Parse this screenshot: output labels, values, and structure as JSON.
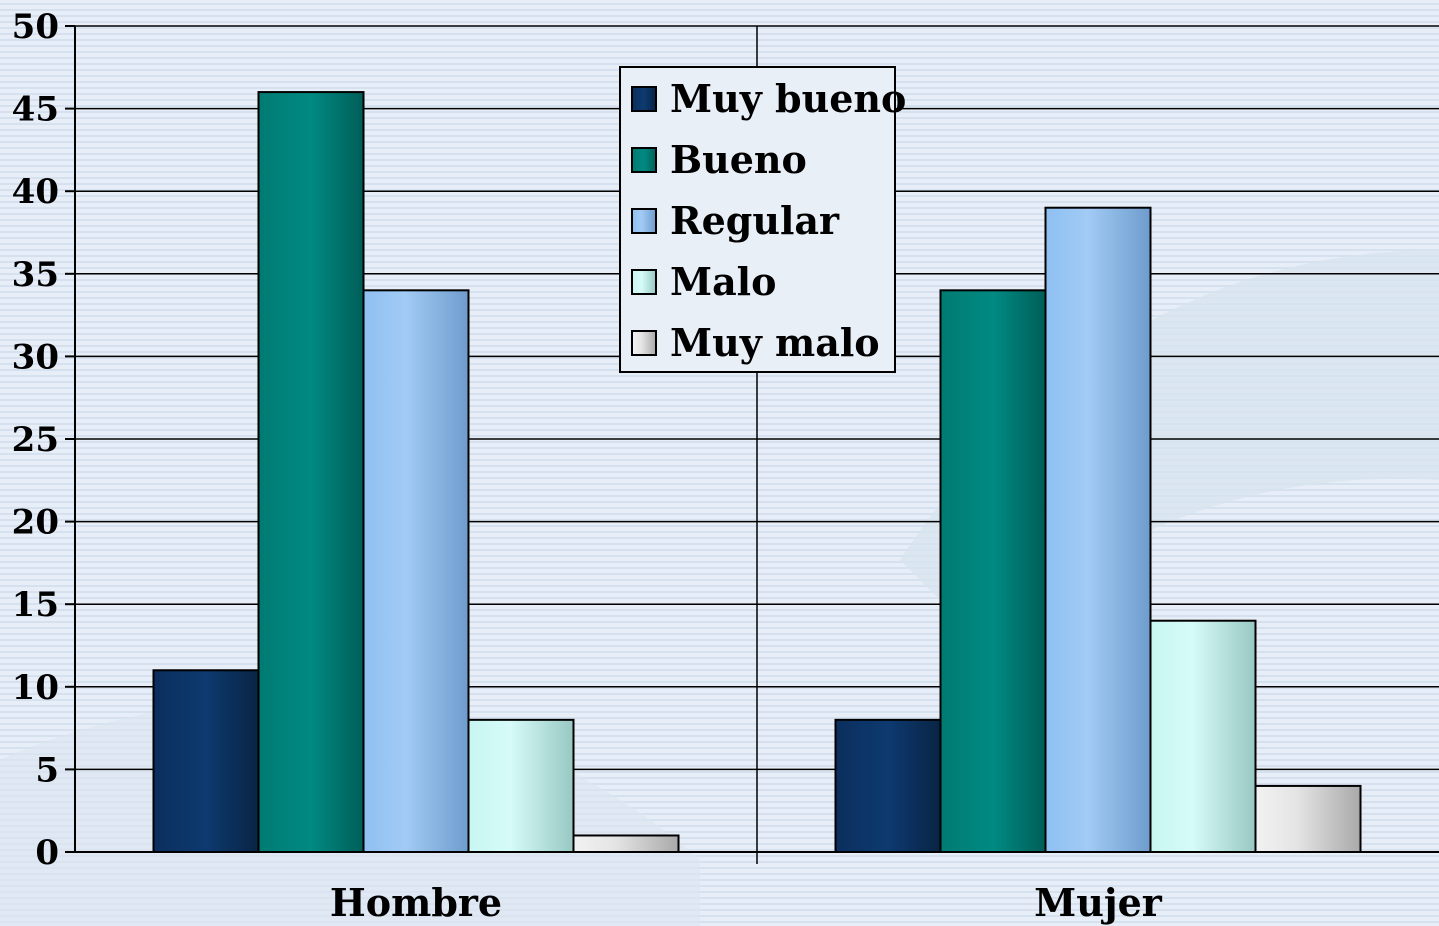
{
  "chart_data": {
    "type": "bar",
    "categories": [
      "Hombre",
      "Mujer"
    ],
    "series": [
      {
        "name": "Muy bueno",
        "values": [
          11,
          8
        ],
        "color": "#0b2f5e"
      },
      {
        "name": "Bueno",
        "values": [
          46,
          34
        ],
        "color": "#007b73"
      },
      {
        "name": "Regular",
        "values": [
          34,
          39
        ],
        "color": "#8fbfef"
      },
      {
        "name": "Malo",
        "values": [
          8,
          14
        ],
        "color": "#c6f3ef"
      },
      {
        "name": "Muy malo",
        "values": [
          1,
          4
        ],
        "color": "#e6e6e6"
      }
    ],
    "title": "",
    "xlabel": "",
    "ylabel": "",
    "ylim": [
      0,
      50
    ],
    "yticks": [
      "0",
      "5",
      "10",
      "15",
      "20",
      "25",
      "30",
      "35",
      "40",
      "45",
      "50"
    ],
    "grid": true,
    "legend_position": "top-center"
  }
}
